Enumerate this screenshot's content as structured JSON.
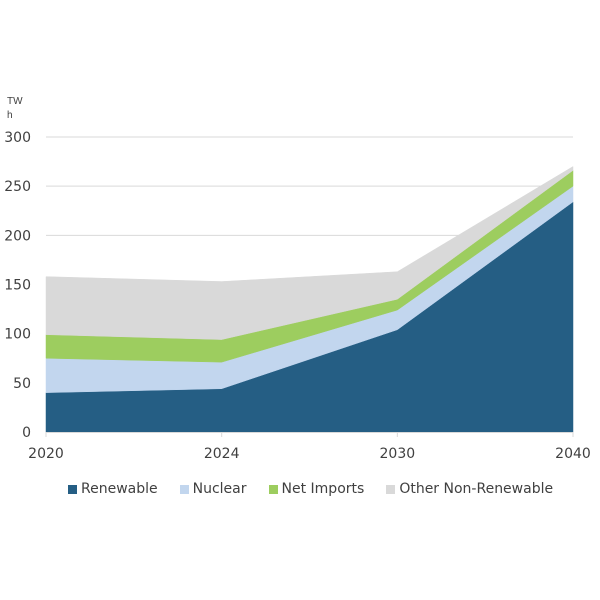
{
  "chart_data": {
    "type": "area",
    "stacked": true,
    "title": "",
    "xlabel": "",
    "ylabel": "TWh",
    "unit_label_lines": [
      "TW",
      "h"
    ],
    "categories": [
      "2020",
      "2024",
      "2030",
      "2040"
    ],
    "ylim": [
      0,
      300
    ],
    "yticks": [
      0,
      50,
      100,
      150,
      200,
      250,
      300
    ],
    "grid": true,
    "legend_position": "bottom",
    "series": [
      {
        "name": "Renewable",
        "color": "#255e84",
        "values": [
          40,
          44,
          104,
          234
        ]
      },
      {
        "name": "Nuclear",
        "color": "#c2d6ee",
        "values": [
          35,
          27,
          20,
          16
        ]
      },
      {
        "name": "Net Imports",
        "color": "#9dcd5f",
        "values": [
          24,
          23,
          11,
          16
        ]
      },
      {
        "name": "Other Non-Renewable",
        "color": "#d9d9d9",
        "values": [
          59,
          59,
          28,
          4
        ]
      }
    ]
  }
}
